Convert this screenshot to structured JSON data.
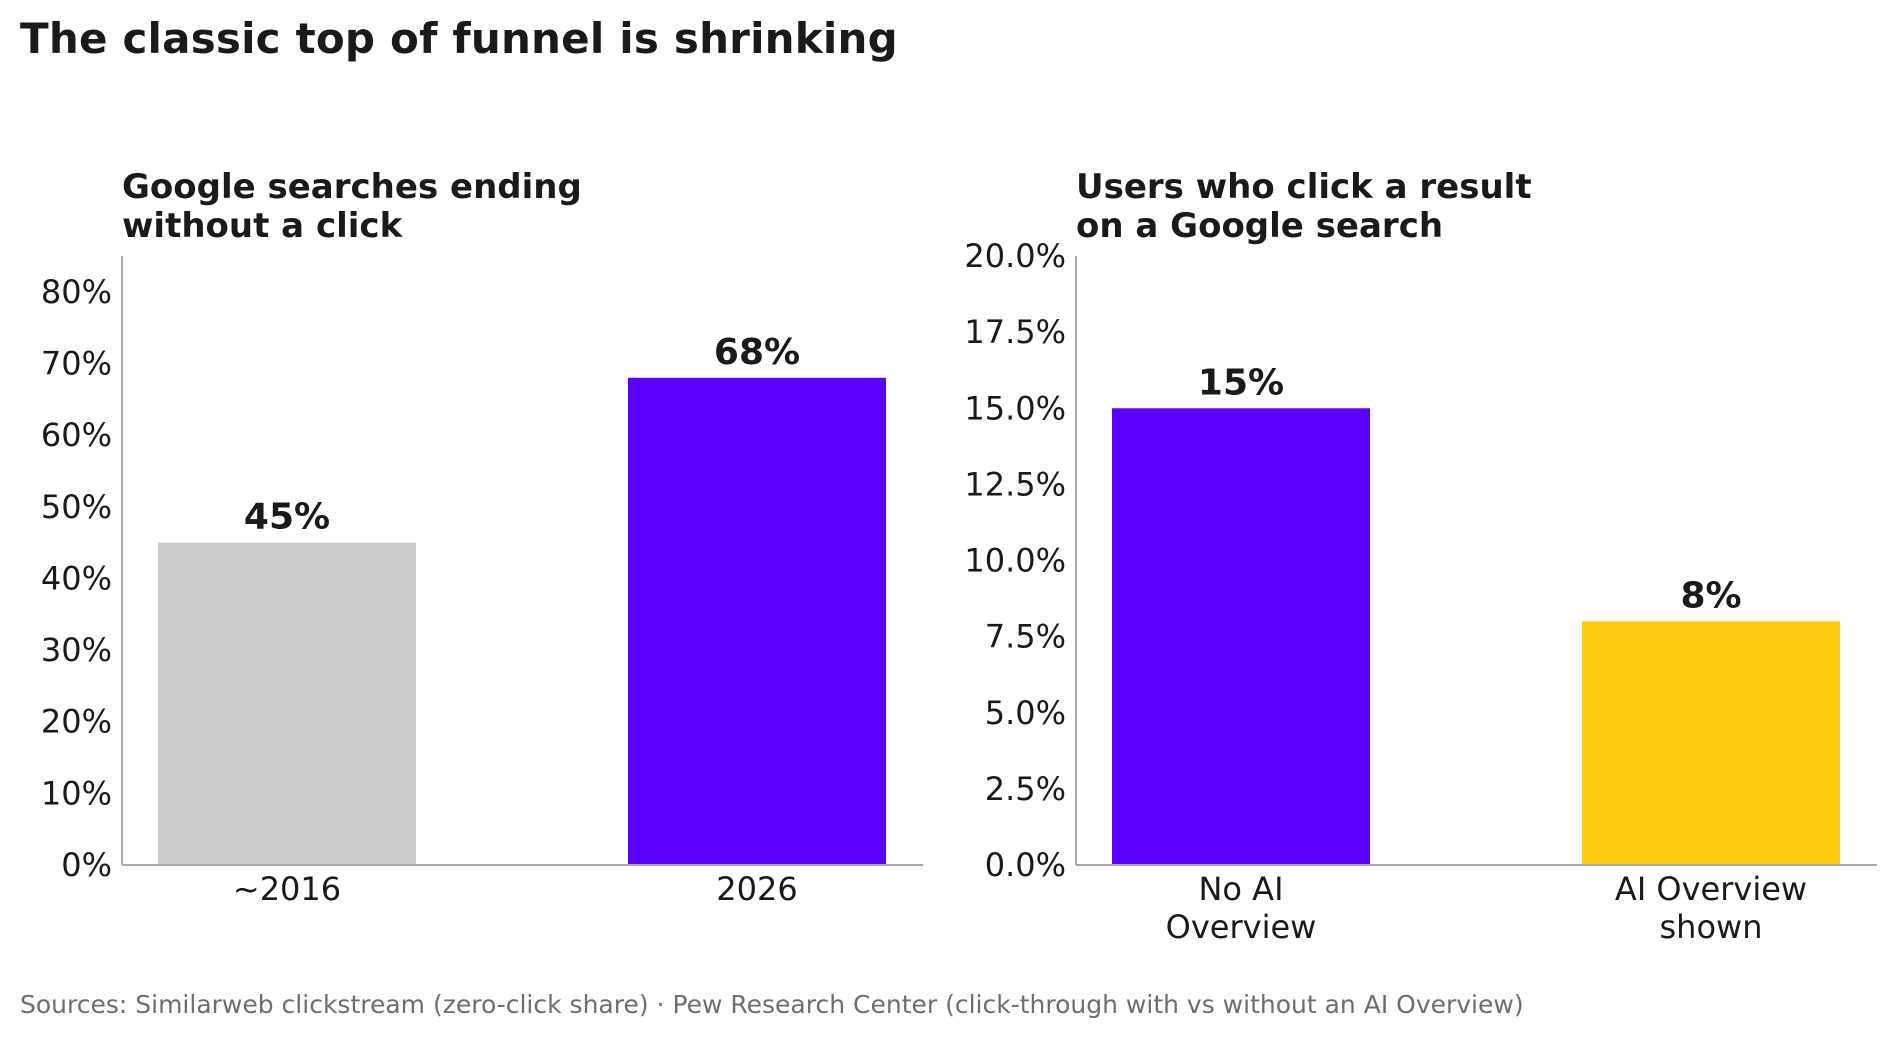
{
  "title": "The classic top of funnel is shrinking",
  "source": "Sources: Similarweb clickstream (zero-click share) · Pew Research Center (click-through with vs without an AI Overview)",
  "colors": {
    "gray": "#cccccc",
    "purple": "#5900ff",
    "yellow": "#ffcb0c",
    "text": "#1a1a1a",
    "axis": "#aaaaaa",
    "note": "#6e6e6e"
  },
  "chart_data": [
    {
      "type": "bar",
      "title": [
        "Google searches ending",
        "without a click"
      ],
      "categories": [
        [
          "~2016"
        ],
        [
          "2026"
        ]
      ],
      "values": [
        45,
        68
      ],
      "value_labels": [
        "45%",
        "68%"
      ],
      "bar_colors": [
        "#cccccc",
        "#5900ff"
      ],
      "ylim": [
        0,
        85
      ],
      "yticks": [
        0,
        10,
        20,
        30,
        40,
        50,
        60,
        70,
        80
      ],
      "ytick_labels": [
        "0%",
        "10%",
        "20%",
        "30%",
        "40%",
        "50%",
        "60%",
        "70%",
        "80%"
      ],
      "grid": false
    },
    {
      "type": "bar",
      "title": [
        "Users who click a result",
        "on a Google search"
      ],
      "categories": [
        [
          "No AI",
          "Overview"
        ],
        [
          "AI Overview",
          "shown"
        ]
      ],
      "values": [
        15,
        8
      ],
      "value_labels": [
        "15%",
        "8%"
      ],
      "bar_colors": [
        "#5900ff",
        "#ffcb0c"
      ],
      "ylim": [
        0,
        20
      ],
      "yticks": [
        0,
        2.5,
        5,
        7.5,
        10,
        12.5,
        15,
        17.5,
        20
      ],
      "ytick_labels": [
        "0.0%",
        "2.5%",
        "5.0%",
        "7.5%",
        "10.0%",
        "12.5%",
        "15.0%",
        "17.5%",
        "20.0%"
      ],
      "grid": false
    }
  ]
}
